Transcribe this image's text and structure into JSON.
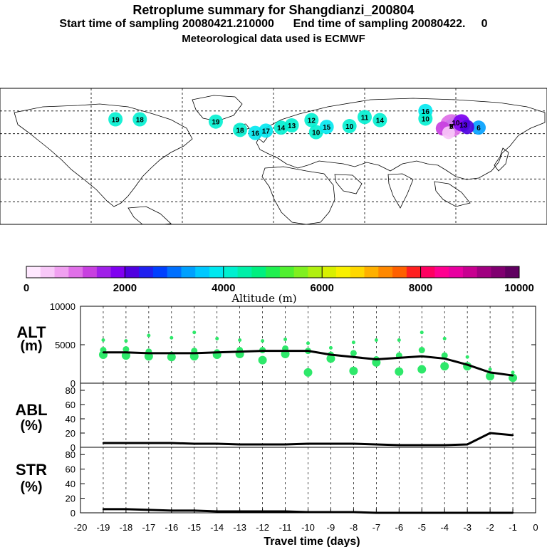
{
  "header": {
    "title": "Retroplume summary for Shangdianzi_200804",
    "subtitle_1": "Start time of sampling 20080421.210000      End time of sampling 20080422.     0",
    "subtitle_2": "Meteorological data used is ECMWF"
  },
  "colorbar": {
    "title": "Altitude (m)",
    "ticks": [
      "0",
      "2000",
      "4000",
      "6000",
      "8000",
      "10000"
    ],
    "min": 0,
    "max": 10000,
    "colors": [
      "#ffe8ff",
      "#f8c8f8",
      "#f0a0f0",
      "#e070e8",
      "#c840e0",
      "#a020e8",
      "#8000f0",
      "#5000e0",
      "#2020f0",
      "#0040ff",
      "#0070ff",
      "#00a0ff",
      "#00c8ff",
      "#00e8f0",
      "#00f0d0",
      "#00f0a8",
      "#00f080",
      "#20f050",
      "#50f030",
      "#80f020",
      "#b0f010",
      "#d8f000",
      "#f8f000",
      "#ffd800",
      "#ffb000",
      "#ff8800",
      "#ff6000",
      "#ff2020",
      "#ff0060",
      "#ff0090",
      "#e800a0",
      "#c80090",
      "#a00080",
      "#800070",
      "#600060"
    ]
  },
  "map": {
    "station_marker": "x",
    "labels": [
      {
        "text": "19",
        "lon": -104,
        "lat": 49
      },
      {
        "text": "18",
        "lon": -88,
        "lat": 49
      },
      {
        "text": "19",
        "lon": -38,
        "lat": 46
      },
      {
        "text": "18",
        "lon": -22,
        "lat": 35
      },
      {
        "text": "16",
        "lon": -12,
        "lat": 31
      },
      {
        "text": "17",
        "lon": -5,
        "lat": 34
      },
      {
        "text": "14",
        "lon": 5,
        "lat": 38
      },
      {
        "text": "13",
        "lon": 12,
        "lat": 41
      },
      {
        "text": "12",
        "lon": 25,
        "lat": 48
      },
      {
        "text": "10",
        "lon": 28,
        "lat": 32
      },
      {
        "text": "15",
        "lon": 35,
        "lat": 39
      },
      {
        "text": "10",
        "lon": 50,
        "lat": 40
      },
      {
        "text": "11",
        "lon": 60,
        "lat": 52
      },
      {
        "text": "14",
        "lon": 70,
        "lat": 48
      },
      {
        "text": "16",
        "lon": 100,
        "lat": 60
      },
      {
        "text": "10",
        "lon": 100,
        "lat": 50
      },
      {
        "text": "10",
        "lon": 120,
        "lat": 45
      },
      {
        "text": "13",
        "lon": 125,
        "lat": 42
      },
      {
        "text": "9",
        "lon": 117,
        "lat": 40
      },
      {
        "text": "6",
        "lon": 135,
        "lat": 38
      }
    ]
  },
  "panels": {
    "alt": {
      "label_line1": "ALT",
      "label_line2": "(m)",
      "yticks": [
        "10000",
        "5000",
        "0"
      ]
    },
    "abl": {
      "label_line1": "ABL",
      "label_line2": "(%)",
      "yticks": [
        "80",
        "60",
        "40",
        "20",
        "0"
      ]
    },
    "str": {
      "label_line1": "STR",
      "label_line2": "(%)",
      "yticks": [
        "80",
        "60",
        "40",
        "20",
        "0"
      ]
    }
  },
  "chart_data": {
    "type": "line",
    "xlabel": "Travel time (days)",
    "x_ticks": [
      "-20",
      "-19",
      "-18",
      "-17",
      "-16",
      "-15",
      "-14",
      "-13",
      "-12",
      "-11",
      "-10",
      "-9",
      "-8",
      "-7",
      "-6",
      "-5",
      "-4",
      "-3",
      "-2",
      "-1",
      "0"
    ],
    "xlim": [
      -20,
      0
    ],
    "x": [
      -19,
      -18,
      -17,
      -16,
      -15,
      -14,
      -13,
      -12,
      -11,
      -10,
      -9,
      -8,
      -7,
      -6,
      -5,
      -4,
      -3,
      -2,
      -1
    ],
    "series": [
      {
        "name": "ALT",
        "unit": "m",
        "ylim": [
          0,
          10000
        ],
        "values": [
          4000,
          4000,
          3900,
          3900,
          3900,
          4000,
          4100,
          4200,
          4200,
          4200,
          3700,
          3400,
          3100,
          3300,
          3500,
          3200,
          2400,
          1400,
          1000
        ]
      },
      {
        "name": "ABL",
        "unit": "%",
        "ylim": [
          0,
          90
        ],
        "values": [
          6,
          6,
          6,
          6,
          5,
          5,
          4,
          4,
          4,
          5,
          5,
          5,
          4,
          3,
          3,
          3,
          4,
          20,
          17
        ]
      },
      {
        "name": "STR",
        "unit": "%",
        "ylim": [
          0,
          90
        ],
        "values": [
          5,
          5,
          4,
          3,
          3,
          2,
          2,
          2,
          2,
          1,
          1,
          1,
          0,
          0,
          0,
          0,
          0,
          0,
          0
        ]
      }
    ],
    "alt_scatter": [
      {
        "x": -19,
        "alts": [
          5600,
          4300,
          3700
        ]
      },
      {
        "x": -18,
        "alts": [
          5500,
          4400,
          3600
        ]
      },
      {
        "x": -17,
        "alts": [
          6200,
          4100,
          3500
        ]
      },
      {
        "x": -16,
        "alts": [
          5900,
          3700,
          3400
        ]
      },
      {
        "x": -15,
        "alts": [
          6600,
          4200,
          3500
        ]
      },
      {
        "x": -14,
        "alts": [
          5800,
          4000,
          3700
        ]
      },
      {
        "x": -13,
        "alts": [
          5600,
          4300,
          3800
        ]
      },
      {
        "x": -12,
        "alts": [
          5500,
          4300,
          3000
        ]
      },
      {
        "x": -11,
        "alts": [
          5700,
          4500,
          3800
        ]
      },
      {
        "x": -10,
        "alts": [
          5200,
          4200,
          1400
        ]
      },
      {
        "x": -9,
        "alts": [
          4600,
          3700,
          3200
        ]
      },
      {
        "x": -8,
        "alts": [
          5300,
          3900,
          1600
        ]
      },
      {
        "x": -7,
        "alts": [
          5600,
          3100,
          2700
        ]
      },
      {
        "x": -6,
        "alts": [
          5600,
          3600,
          1500
        ]
      },
      {
        "x": -5,
        "alts": [
          6600,
          4300,
          1800
        ]
      },
      {
        "x": -4,
        "alts": [
          5800,
          3600,
          2200
        ]
      },
      {
        "x": -3,
        "alts": [
          3400,
          2200
        ]
      },
      {
        "x": -2,
        "alts": [
          1800,
          900
        ]
      },
      {
        "x": -1,
        "alts": [
          1400,
          700
        ]
      }
    ]
  }
}
